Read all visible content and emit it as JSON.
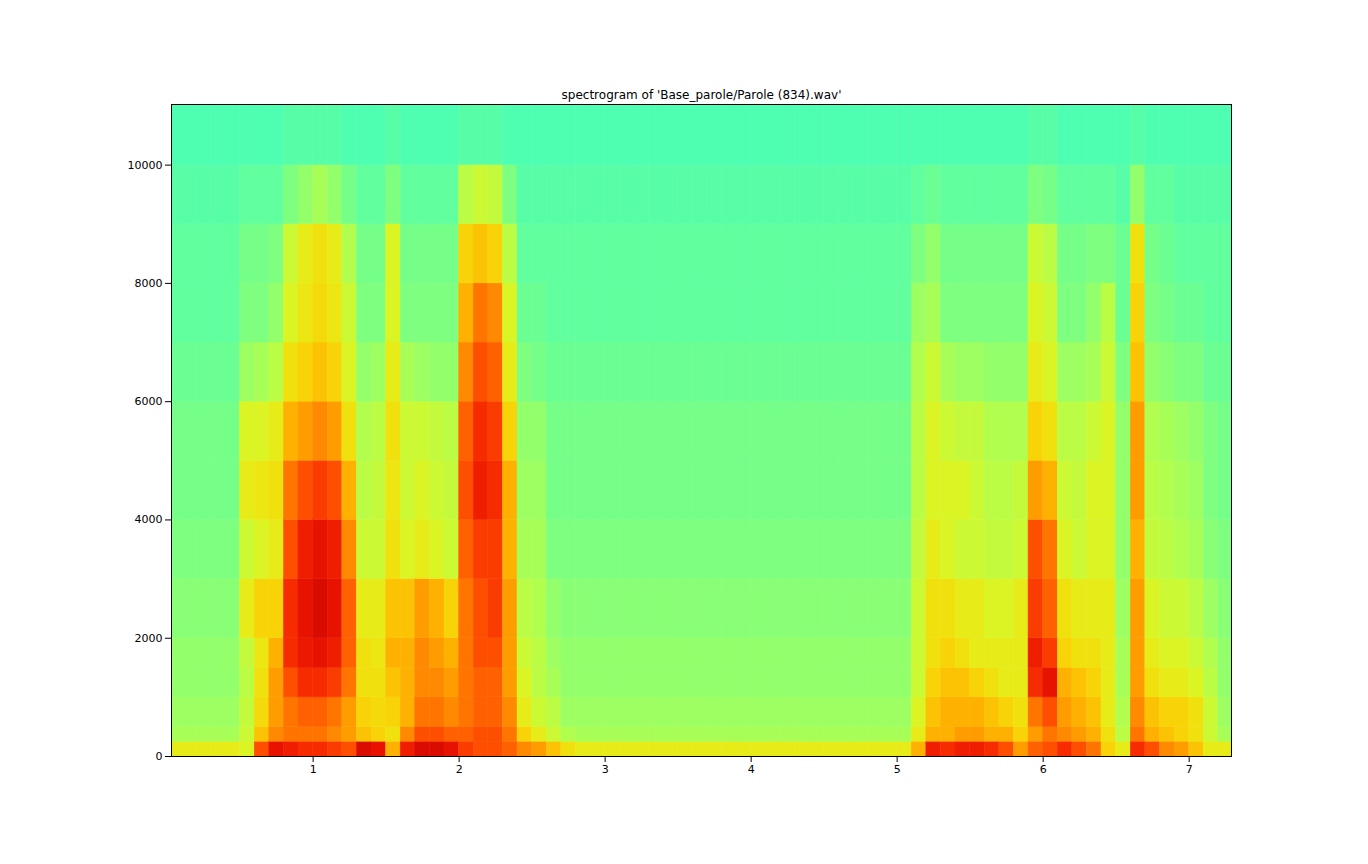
{
  "chart_data": {
    "type": "heatmap",
    "title": "spectrogram of 'Base_parole/Parole (834).wav'",
    "xlim": [
      0.03,
      7.29
    ],
    "ylim": [
      0,
      11025
    ],
    "xticks": [
      1,
      2,
      3,
      4,
      5,
      6,
      7
    ],
    "yticks": [
      0,
      2000,
      4000,
      6000,
      8000,
      10000
    ],
    "grid": false,
    "zlim": [
      0,
      100
    ],
    "time_bins": [
      0,
      0.1,
      0.2,
      0.3,
      0.4,
      0.5,
      0.6,
      0.7,
      0.8,
      0.9,
      1.0,
      1.1,
      1.2,
      1.3,
      1.4,
      1.5,
      1.6,
      1.7,
      1.8,
      1.9,
      2.0,
      2.1,
      2.2,
      2.3,
      2.4,
      2.5,
      2.6,
      2.7,
      2.8,
      2.9,
      3.0,
      3.1,
      3.2,
      3.3,
      3.4,
      3.5,
      3.6,
      3.7,
      3.8,
      3.9,
      4.0,
      4.1,
      4.2,
      4.3,
      4.4,
      4.5,
      4.6,
      4.7,
      4.8,
      4.9,
      5.0,
      5.1,
      5.2,
      5.3,
      5.4,
      5.5,
      5.6,
      5.7,
      5.8,
      5.9,
      6.0,
      6.1,
      6.2,
      6.3,
      6.4,
      6.5,
      6.6,
      6.7,
      6.8,
      6.9,
      7.0,
      7.1,
      7.2,
      7.3
    ],
    "freq_bins": [
      0,
      250,
      500,
      1000,
      1500,
      2000,
      3000,
      4000,
      5000,
      6000,
      7000,
      8000,
      9000,
      10000,
      11025
    ],
    "cells": [
      [
        62,
        54,
        53,
        52,
        52,
        51,
        50,
        49,
        49,
        48,
        47,
        47,
        46,
        45
      ],
      [
        62,
        54,
        53,
        52,
        52,
        51,
        50,
        49,
        49,
        48,
        47,
        47,
        46,
        45
      ],
      [
        62,
        54,
        53,
        52,
        52,
        51,
        50,
        49,
        49,
        48,
        47,
        47,
        46,
        45
      ],
      [
        62,
        54,
        53,
        52,
        52,
        51,
        50,
        49,
        49,
        48,
        47,
        47,
        46,
        45
      ],
      [
        62,
        54,
        53,
        52,
        52,
        51,
        50,
        49,
        49,
        48,
        47,
        47,
        46,
        45
      ],
      [
        60,
        58,
        57,
        56,
        57,
        62,
        58,
        62,
        60,
        53,
        50,
        49,
        47,
        45
      ],
      [
        80,
        68,
        65,
        64,
        63,
        66,
        60,
        63,
        60,
        54,
        50,
        49,
        47,
        45
      ],
      [
        88,
        74,
        72,
        72,
        70,
        66,
        62,
        64,
        62,
        56,
        52,
        50,
        47,
        45
      ],
      [
        86,
        76,
        76,
        80,
        84,
        84,
        80,
        76,
        70,
        64,
        60,
        58,
        50,
        46
      ],
      [
        84,
        76,
        78,
        84,
        87,
        88,
        86,
        80,
        72,
        66,
        63,
        62,
        52,
        46
      ],
      [
        84,
        76,
        78,
        84,
        88,
        90,
        88,
        82,
        74,
        68,
        65,
        64,
        54,
        46
      ],
      [
        82,
        74,
        76,
        82,
        86,
        88,
        86,
        80,
        72,
        66,
        63,
        62,
        52,
        46
      ],
      [
        80,
        72,
        72,
        76,
        78,
        78,
        74,
        70,
        64,
        60,
        58,
        55,
        49,
        45
      ],
      [
        90,
        68,
        66,
        64,
        64,
        62,
        58,
        56,
        55,
        52,
        50,
        49,
        47,
        45
      ],
      [
        88,
        66,
        65,
        64,
        63,
        62,
        58,
        57,
        56,
        53,
        50,
        49,
        47,
        45
      ],
      [
        70,
        64,
        66,
        68,
        70,
        68,
        64,
        63,
        64,
        62,
        60,
        60,
        50,
        46
      ],
      [
        86,
        74,
        70,
        70,
        70,
        68,
        60,
        58,
        58,
        54,
        50,
        49,
        47,
        45
      ],
      [
        90,
        80,
        76,
        74,
        74,
        72,
        62,
        60,
        58,
        53,
        50,
        49,
        47,
        45
      ],
      [
        90,
        80,
        76,
        74,
        72,
        70,
        60,
        58,
        57,
        52,
        50,
        49,
        47,
        45
      ],
      [
        88,
        78,
        74,
        72,
        70,
        66,
        58,
        57,
        56,
        52,
        50,
        49,
        47,
        45
      ],
      [
        82,
        78,
        76,
        76,
        76,
        76,
        78,
        80,
        78,
        74,
        70,
        66,
        56,
        46
      ],
      [
        80,
        80,
        78,
        78,
        80,
        80,
        82,
        86,
        84,
        80,
        76,
        68,
        58,
        46
      ],
      [
        80,
        80,
        78,
        78,
        80,
        82,
        82,
        84,
        82,
        78,
        74,
        66,
        57,
        46
      ],
      [
        78,
        76,
        74,
        72,
        72,
        72,
        70,
        70,
        66,
        62,
        60,
        56,
        50,
        45
      ],
      [
        74,
        66,
        62,
        60,
        58,
        56,
        54,
        53,
        52,
        50,
        48,
        47,
        46,
        45
      ],
      [
        72,
        62,
        58,
        56,
        56,
        55,
        54,
        53,
        52,
        49,
        48,
        47,
        46,
        45
      ],
      [
        68,
        58,
        56,
        54,
        53,
        52,
        50,
        49,
        49,
        48,
        47,
        47,
        46,
        45
      ],
      [
        64,
        55,
        53,
        52,
        52,
        51,
        50,
        49,
        49,
        48,
        47,
        47,
        46,
        45
      ],
      [
        62,
        54,
        53,
        52,
        52,
        51,
        50,
        49,
        49,
        48,
        47,
        47,
        46,
        45
      ],
      [
        62,
        54,
        53,
        52,
        52,
        51,
        50,
        49,
        49,
        48,
        47,
        47,
        46,
        45
      ],
      [
        62,
        54,
        53,
        52,
        52,
        51,
        50,
        49,
        49,
        48,
        47,
        47,
        46,
        45
      ],
      [
        62,
        54,
        53,
        52,
        52,
        51,
        50,
        49,
        49,
        48,
        47,
        47,
        46,
        45
      ],
      [
        62,
        54,
        53,
        52,
        52,
        51,
        50,
        49,
        49,
        48,
        47,
        47,
        46,
        45
      ],
      [
        62,
        54,
        53,
        52,
        52,
        51,
        50,
        49,
        49,
        48,
        47,
        47,
        46,
        45
      ],
      [
        62,
        54,
        53,
        52,
        52,
        51,
        50,
        49,
        49,
        48,
        47,
        47,
        46,
        45
      ],
      [
        62,
        54,
        53,
        52,
        52,
        51,
        50,
        49,
        49,
        48,
        47,
        47,
        46,
        45
      ],
      [
        62,
        54,
        53,
        52,
        52,
        51,
        50,
        49,
        49,
        48,
        47,
        47,
        46,
        45
      ],
      [
        62,
        54,
        53,
        52,
        52,
        51,
        50,
        49,
        49,
        48,
        47,
        47,
        46,
        45
      ],
      [
        62,
        54,
        53,
        52,
        52,
        51,
        50,
        49,
        49,
        48,
        47,
        47,
        46,
        45
      ],
      [
        62,
        54,
        53,
        52,
        52,
        51,
        50,
        49,
        49,
        48,
        47,
        47,
        46,
        45
      ],
      [
        62,
        54,
        53,
        52,
        52,
        51,
        50,
        49,
        49,
        48,
        47,
        47,
        46,
        45
      ],
      [
        62,
        54,
        53,
        52,
        52,
        51,
        50,
        49,
        49,
        48,
        47,
        47,
        46,
        45
      ],
      [
        62,
        54,
        53,
        52,
        52,
        51,
        50,
        49,
        49,
        48,
        47,
        47,
        46,
        45
      ],
      [
        62,
        54,
        53,
        52,
        52,
        51,
        50,
        49,
        49,
        48,
        47,
        47,
        46,
        45
      ],
      [
        62,
        54,
        53,
        52,
        52,
        51,
        50,
        49,
        49,
        48,
        47,
        47,
        46,
        45
      ],
      [
        62,
        54,
        53,
        52,
        52,
        51,
        50,
        49,
        49,
        48,
        47,
        47,
        46,
        45
      ],
      [
        62,
        54,
        53,
        52,
        52,
        51,
        50,
        49,
        49,
        48,
        47,
        47,
        46,
        45
      ],
      [
        62,
        54,
        53,
        52,
        52,
        51,
        50,
        49,
        49,
        48,
        47,
        47,
        46,
        45
      ],
      [
        62,
        54,
        53,
        52,
        52,
        51,
        50,
        49,
        49,
        48,
        47,
        47,
        46,
        45
      ],
      [
        62,
        54,
        53,
        52,
        52,
        51,
        50,
        49,
        49,
        48,
        47,
        47,
        46,
        45
      ],
      [
        62,
        54,
        53,
        52,
        52,
        51,
        50,
        49,
        49,
        48,
        47,
        47,
        46,
        45
      ],
      [
        70,
        62,
        60,
        58,
        58,
        58,
        57,
        56,
        56,
        55,
        53,
        50,
        47,
        45
      ],
      [
        86,
        70,
        68,
        66,
        64,
        64,
        62,
        60,
        60,
        58,
        54,
        52,
        48,
        45
      ],
      [
        84,
        70,
        70,
        68,
        66,
        64,
        60,
        60,
        58,
        54,
        50,
        49,
        47,
        45
      ],
      [
        86,
        72,
        70,
        68,
        64,
        62,
        58,
        60,
        57,
        53,
        50,
        49,
        47,
        45
      ],
      [
        86,
        72,
        70,
        66,
        62,
        62,
        58,
        58,
        57,
        53,
        50,
        49,
        47,
        45
      ],
      [
        84,
        70,
        68,
        64,
        62,
        60,
        57,
        56,
        55,
        52,
        50,
        49,
        47,
        45
      ],
      [
        80,
        70,
        66,
        62,
        62,
        60,
        57,
        56,
        55,
        52,
        50,
        49,
        47,
        45
      ],
      [
        72,
        66,
        64,
        62,
        62,
        62,
        58,
        57,
        55,
        52,
        50,
        49,
        47,
        45
      ],
      [
        78,
        72,
        76,
        84,
        86,
        82,
        80,
        72,
        66,
        62,
        60,
        58,
        50,
        46
      ],
      [
        80,
        76,
        80,
        88,
        82,
        78,
        76,
        70,
        64,
        60,
        58,
        56,
        49,
        46
      ],
      [
        84,
        74,
        72,
        70,
        66,
        64,
        60,
        58,
        56,
        53,
        50,
        49,
        47,
        45
      ],
      [
        80,
        72,
        70,
        68,
        64,
        62,
        58,
        57,
        56,
        53,
        50,
        49,
        47,
        45
      ],
      [
        76,
        70,
        68,
        66,
        64,
        62,
        60,
        60,
        58,
        54,
        52,
        50,
        47,
        45
      ],
      [
        66,
        64,
        62,
        62,
        62,
        62,
        60,
        60,
        60,
        58,
        56,
        50,
        47,
        45
      ],
      [
        62,
        56,
        55,
        54,
        54,
        53,
        52,
        52,
        52,
        50,
        48,
        48,
        46,
        45
      ],
      [
        84,
        76,
        74,
        72,
        72,
        72,
        70,
        72,
        72,
        68,
        66,
        64,
        52,
        46
      ],
      [
        80,
        70,
        68,
        64,
        62,
        60,
        57,
        56,
        55,
        52,
        50,
        49,
        47,
        45
      ],
      [
        74,
        68,
        66,
        62,
        60,
        58,
        56,
        55,
        54,
        51,
        49,
        48,
        47,
        45
      ],
      [
        72,
        66,
        66,
        62,
        60,
        58,
        55,
        54,
        53,
        50,
        48,
        47,
        46,
        45
      ],
      [
        68,
        64,
        64,
        60,
        58,
        56,
        54,
        53,
        52,
        50,
        48,
        47,
        46,
        45
      ],
      [
        62,
        58,
        58,
        56,
        55,
        53,
        51,
        50,
        50,
        48,
        47,
        47,
        46,
        45
      ],
      [
        62,
        54,
        53,
        52,
        52,
        51,
        50,
        49,
        49,
        48,
        47,
        47,
        46,
        45
      ]
    ]
  }
}
